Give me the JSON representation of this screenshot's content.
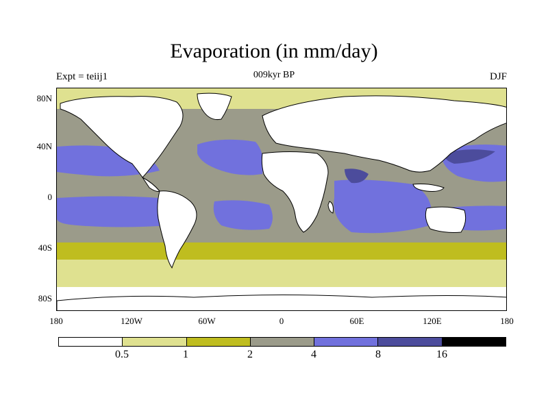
{
  "title": "Evaporation (in mm/day)",
  "subtitle": "009kyr BP",
  "left_label": "Expt = teiij1",
  "right_label": "DJF",
  "lat_ticks": [
    "80N",
    "40N",
    "0",
    "40S",
    "80S"
  ],
  "lon_ticks": [
    "180",
    "120W",
    "60W",
    "0",
    "60E",
    "120E",
    "180"
  ],
  "colorbar": {
    "colors": [
      "#ffffff",
      "#dfe190",
      "#bfbd1f",
      "#9b9b8a",
      "#7171dd",
      "#4c4c9c",
      "#000000"
    ],
    "labels": [
      "0.5",
      "1",
      "2",
      "4",
      "8",
      "16"
    ]
  },
  "colors": {
    "land": "#ffffff",
    "polar": "#ffffff",
    "low": "#dfe190",
    "mid_low": "#bfbd1f",
    "mid": "#9b9b8a",
    "high": "#7171dd",
    "very_high": "#4c4c9c",
    "coast": "#000000"
  }
}
